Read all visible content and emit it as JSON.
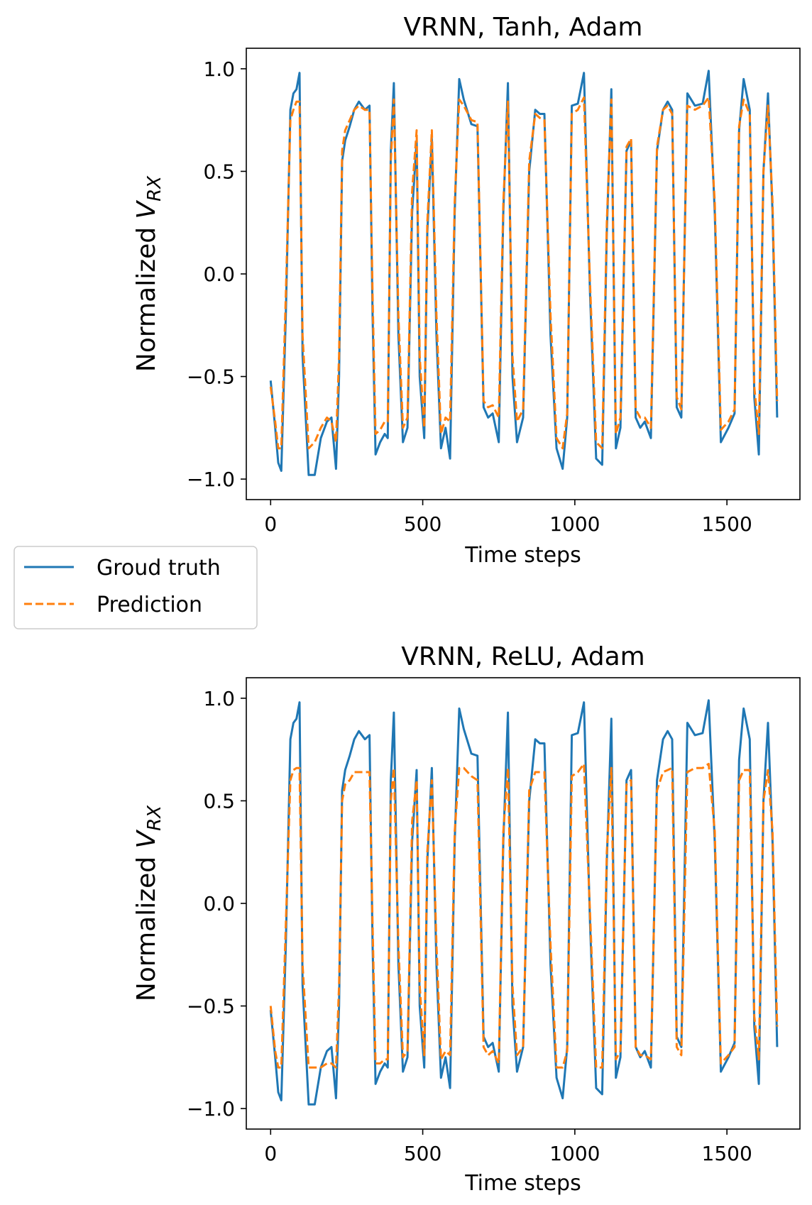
{
  "colors": {
    "truth": "#1f77b4",
    "prediction": "#ff7f0e"
  },
  "legend": {
    "location": "left, between panels",
    "entries": [
      "Groud truth",
      "Prediction"
    ]
  },
  "chart_data": [
    {
      "type": "line",
      "title": "VRNN, Tanh, Adam",
      "xlabel": "Time steps",
      "ylabel_main": "Normalized ",
      "ylabel_var": "V",
      "ylabel_sub": "RX",
      "xlim": [
        -80,
        1740
      ],
      "ylim": [
        -1.1,
        1.1
      ],
      "xticks": [
        0,
        500,
        1000,
        1500
      ],
      "xtick_labels": [
        "0",
        "500",
        "1000",
        "1500"
      ],
      "yticks": [
        1.0,
        0.5,
        0.0,
        -0.5,
        -1.0
      ],
      "ytick_labels": [
        "1.0",
        "0.5",
        "0.0",
        "−0.5",
        "−1.0"
      ],
      "series": [
        {
          "name": "Groud truth",
          "x": [
            0,
            15,
            25,
            35,
            50,
            65,
            75,
            85,
            95,
            105,
            125,
            145,
            165,
            185,
            200,
            215,
            225,
            235,
            245,
            260,
            275,
            290,
            310,
            325,
            335,
            345,
            360,
            375,
            385,
            395,
            405,
            420,
            435,
            450,
            465,
            480,
            490,
            505,
            515,
            530,
            545,
            560,
            575,
            590,
            605,
            620,
            635,
            660,
            680,
            700,
            715,
            730,
            750,
            765,
            780,
            795,
            810,
            830,
            850,
            870,
            885,
            900,
            920,
            940,
            960,
            975,
            990,
            1010,
            1030,
            1050,
            1070,
            1090,
            1105,
            1120,
            1135,
            1150,
            1170,
            1185,
            1200,
            1215,
            1230,
            1250,
            1270,
            1290,
            1305,
            1320,
            1335,
            1350,
            1370,
            1395,
            1420,
            1440,
            1460,
            1480,
            1505,
            1525,
            1540,
            1555,
            1575,
            1590,
            1605,
            1620,
            1635,
            1650,
            1665
          ],
          "y": [
            -0.52,
            -0.75,
            -0.92,
            -0.96,
            -0.2,
            0.8,
            0.88,
            0.9,
            0.98,
            -0.4,
            -0.98,
            -0.98,
            -0.8,
            -0.72,
            -0.7,
            -0.95,
            -0.5,
            0.55,
            0.65,
            0.72,
            0.8,
            0.84,
            0.8,
            0.82,
            -0.2,
            -0.88,
            -0.82,
            -0.78,
            -0.8,
            0.6,
            0.93,
            -0.3,
            -0.82,
            -0.75,
            0.3,
            0.65,
            -0.5,
            -0.8,
            0.2,
            0.66,
            -0.3,
            -0.85,
            -0.75,
            -0.9,
            0.3,
            0.95,
            0.85,
            0.73,
            0.72,
            -0.65,
            -0.7,
            -0.68,
            -0.82,
            0.3,
            0.93,
            -0.5,
            -0.82,
            -0.7,
            0.5,
            0.8,
            0.78,
            0.78,
            -0.3,
            -0.85,
            -0.95,
            -0.7,
            0.82,
            0.83,
            0.98,
            -0.1,
            -0.9,
            -0.93,
            0.2,
            0.9,
            -0.85,
            -0.75,
            0.6,
            0.65,
            -0.7,
            -0.75,
            -0.72,
            -0.8,
            0.6,
            0.8,
            0.84,
            0.8,
            -0.65,
            -0.7,
            0.88,
            0.82,
            0.83,
            0.99,
            0.3,
            -0.82,
            -0.75,
            -0.68,
            0.7,
            0.95,
            0.8,
            -0.6,
            -0.88,
            0.5,
            0.88,
            0.3,
            -0.7
          ]
        },
        {
          "name": "Prediction",
          "x": [
            0,
            15,
            25,
            35,
            50,
            65,
            75,
            85,
            95,
            105,
            125,
            145,
            165,
            185,
            200,
            215,
            225,
            235,
            245,
            260,
            275,
            290,
            310,
            325,
            335,
            345,
            360,
            375,
            385,
            395,
            405,
            420,
            435,
            450,
            465,
            480,
            490,
            505,
            515,
            530,
            545,
            560,
            575,
            590,
            605,
            620,
            635,
            660,
            680,
            700,
            715,
            730,
            750,
            765,
            780,
            795,
            810,
            830,
            850,
            870,
            885,
            900,
            920,
            940,
            960,
            975,
            990,
            1010,
            1030,
            1050,
            1070,
            1090,
            1105,
            1120,
            1135,
            1150,
            1170,
            1185,
            1200,
            1215,
            1230,
            1250,
            1270,
            1290,
            1305,
            1320,
            1335,
            1350,
            1370,
            1395,
            1420,
            1440,
            1460,
            1480,
            1505,
            1525,
            1540,
            1555,
            1575,
            1590,
            1605,
            1620,
            1635,
            1650,
            1665
          ],
          "y": [
            -0.55,
            -0.72,
            -0.85,
            -0.85,
            -0.1,
            0.75,
            0.8,
            0.84,
            0.84,
            -0.3,
            -0.85,
            -0.82,
            -0.75,
            -0.7,
            -0.72,
            -0.82,
            -0.4,
            0.6,
            0.7,
            0.75,
            0.8,
            0.82,
            0.8,
            0.8,
            -0.1,
            -0.78,
            -0.76,
            -0.72,
            -0.72,
            0.55,
            0.85,
            -0.2,
            -0.75,
            -0.7,
            0.4,
            0.7,
            -0.4,
            -0.75,
            0.25,
            0.7,
            -0.2,
            -0.78,
            -0.7,
            -0.72,
            0.35,
            0.85,
            0.82,
            0.75,
            0.74,
            -0.62,
            -0.65,
            -0.64,
            -0.7,
            0.35,
            0.84,
            -0.4,
            -0.72,
            -0.66,
            0.55,
            0.78,
            0.76,
            0.75,
            -0.2,
            -0.8,
            -0.85,
            -0.68,
            0.78,
            0.8,
            0.86,
            -0.05,
            -0.82,
            -0.85,
            0.25,
            0.85,
            -0.78,
            -0.7,
            0.62,
            0.66,
            -0.66,
            -0.7,
            -0.7,
            -0.75,
            0.62,
            0.8,
            0.82,
            0.78,
            -0.6,
            -0.66,
            0.82,
            0.8,
            0.82,
            0.86,
            0.35,
            -0.76,
            -0.72,
            -0.66,
            0.72,
            0.85,
            0.78,
            -0.55,
            -0.78,
            0.5,
            0.82,
            0.35,
            -0.62
          ]
        }
      ]
    },
    {
      "type": "line",
      "title": "VRNN, ReLU, Adam",
      "xlabel": "Time steps",
      "ylabel_main": "Normalized ",
      "ylabel_var": "V",
      "ylabel_sub": "RX",
      "xlim": [
        -80,
        1740
      ],
      "ylim": [
        -1.1,
        1.1
      ],
      "xticks": [
        0,
        500,
        1000,
        1500
      ],
      "xtick_labels": [
        "0",
        "500",
        "1000",
        "1500"
      ],
      "yticks": [
        1.0,
        0.5,
        0.0,
        -0.5,
        -1.0
      ],
      "ytick_labels": [
        "1.0",
        "0.5",
        "0.0",
        "−0.5",
        "−1.0"
      ],
      "series": [
        {
          "name": "Groud truth",
          "x": [
            0,
            15,
            25,
            35,
            50,
            65,
            75,
            85,
            95,
            105,
            125,
            145,
            165,
            185,
            200,
            215,
            225,
            235,
            245,
            260,
            275,
            290,
            310,
            325,
            335,
            345,
            360,
            375,
            385,
            395,
            405,
            420,
            435,
            450,
            465,
            480,
            490,
            505,
            515,
            530,
            545,
            560,
            575,
            590,
            605,
            620,
            635,
            660,
            680,
            700,
            715,
            730,
            750,
            765,
            780,
            795,
            810,
            830,
            850,
            870,
            885,
            900,
            920,
            940,
            960,
            975,
            990,
            1010,
            1030,
            1050,
            1070,
            1090,
            1105,
            1120,
            1135,
            1150,
            1170,
            1185,
            1200,
            1215,
            1230,
            1250,
            1270,
            1290,
            1305,
            1320,
            1335,
            1350,
            1370,
            1395,
            1420,
            1440,
            1460,
            1480,
            1505,
            1525,
            1540,
            1555,
            1575,
            1590,
            1605,
            1620,
            1635,
            1650,
            1665
          ],
          "y": [
            -0.52,
            -0.75,
            -0.92,
            -0.96,
            -0.2,
            0.8,
            0.88,
            0.9,
            0.98,
            -0.4,
            -0.98,
            -0.98,
            -0.8,
            -0.72,
            -0.7,
            -0.95,
            -0.5,
            0.55,
            0.65,
            0.72,
            0.8,
            0.84,
            0.8,
            0.82,
            -0.2,
            -0.88,
            -0.82,
            -0.78,
            -0.8,
            0.6,
            0.93,
            -0.3,
            -0.82,
            -0.75,
            0.3,
            0.65,
            -0.5,
            -0.8,
            0.2,
            0.66,
            -0.3,
            -0.85,
            -0.75,
            -0.9,
            0.3,
            0.95,
            0.85,
            0.73,
            0.72,
            -0.65,
            -0.7,
            -0.68,
            -0.82,
            0.3,
            0.93,
            -0.5,
            -0.82,
            -0.7,
            0.5,
            0.8,
            0.78,
            0.78,
            -0.3,
            -0.85,
            -0.95,
            -0.7,
            0.82,
            0.83,
            0.98,
            -0.1,
            -0.9,
            -0.93,
            0.2,
            0.9,
            -0.85,
            -0.75,
            0.6,
            0.65,
            -0.7,
            -0.75,
            -0.72,
            -0.8,
            0.6,
            0.8,
            0.84,
            0.8,
            -0.65,
            -0.7,
            0.88,
            0.82,
            0.83,
            0.99,
            0.3,
            -0.82,
            -0.75,
            -0.68,
            0.7,
            0.95,
            0.8,
            -0.6,
            -0.88,
            0.5,
            0.88,
            0.3,
            -0.7
          ]
        },
        {
          "name": "Prediction",
          "x": [
            0,
            15,
            25,
            35,
            50,
            65,
            75,
            85,
            95,
            105,
            125,
            145,
            165,
            185,
            200,
            215,
            225,
            235,
            245,
            260,
            275,
            290,
            310,
            325,
            335,
            345,
            360,
            375,
            385,
            395,
            405,
            420,
            435,
            450,
            465,
            480,
            490,
            505,
            515,
            530,
            545,
            560,
            575,
            590,
            605,
            620,
            635,
            660,
            680,
            700,
            715,
            730,
            750,
            765,
            780,
            795,
            810,
            830,
            850,
            870,
            885,
            900,
            920,
            940,
            960,
            975,
            990,
            1010,
            1030,
            1050,
            1070,
            1090,
            1105,
            1120,
            1135,
            1150,
            1170,
            1185,
            1200,
            1215,
            1230,
            1250,
            1270,
            1290,
            1305,
            1320,
            1335,
            1350,
            1370,
            1395,
            1420,
            1440,
            1460,
            1480,
            1505,
            1525,
            1540,
            1555,
            1575,
            1590,
            1605,
            1620,
            1635,
            1650,
            1665
          ],
          "y": [
            -0.5,
            -0.72,
            -0.8,
            -0.8,
            -0.1,
            0.6,
            0.65,
            0.66,
            0.66,
            -0.3,
            -0.8,
            -0.8,
            -0.8,
            -0.78,
            -0.78,
            -0.8,
            -0.4,
            0.5,
            0.58,
            0.6,
            0.64,
            0.64,
            0.64,
            0.64,
            -0.1,
            -0.78,
            -0.78,
            -0.76,
            -0.76,
            0.5,
            0.66,
            -0.2,
            -0.75,
            -0.72,
            0.4,
            0.6,
            -0.4,
            -0.74,
            0.25,
            0.6,
            -0.2,
            -0.76,
            -0.72,
            -0.74,
            0.35,
            0.66,
            0.66,
            0.62,
            0.6,
            -0.7,
            -0.74,
            -0.72,
            -0.78,
            0.35,
            0.66,
            -0.4,
            -0.74,
            -0.7,
            0.55,
            0.64,
            0.64,
            0.64,
            -0.2,
            -0.8,
            -0.8,
            -0.72,
            0.62,
            0.64,
            0.68,
            -0.05,
            -0.8,
            -0.8,
            0.25,
            0.66,
            -0.76,
            -0.72,
            0.58,
            0.6,
            -0.7,
            -0.74,
            -0.74,
            -0.76,
            0.55,
            0.64,
            0.65,
            0.66,
            -0.7,
            -0.74,
            0.64,
            0.66,
            0.66,
            0.68,
            0.35,
            -0.78,
            -0.74,
            -0.7,
            0.6,
            0.65,
            0.65,
            -0.55,
            -0.76,
            0.5,
            0.65,
            0.35,
            -0.6
          ]
        }
      ]
    }
  ]
}
